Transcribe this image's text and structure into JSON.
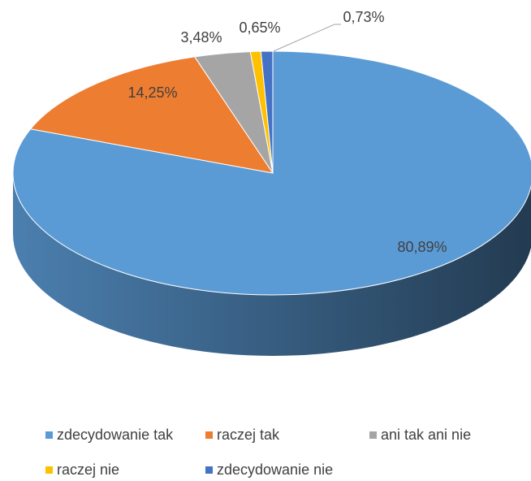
{
  "chart_data": {
    "type": "pie3d",
    "categories": [
      "zdecydowanie tak",
      "raczej tak",
      "ani tak ani nie",
      "raczej nie",
      "zdecydowanie nie"
    ],
    "values": [
      80.89,
      14.25,
      3.48,
      0.65,
      0.73
    ],
    "value_labels": [
      "80,89%",
      "14,25%",
      "3,48%",
      "0,65%",
      "0,73%"
    ],
    "colors": [
      "#5b9bd5",
      "#ed7d31",
      "#a5a5a5",
      "#ffc000",
      "#4472c4"
    ],
    "legend": "bottom"
  }
}
